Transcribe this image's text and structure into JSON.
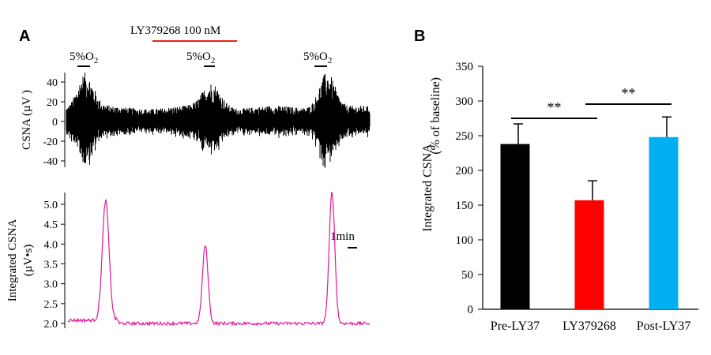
{
  "chart_data": [
    {
      "panel": "A",
      "type": "line",
      "description_top": {
        "ylabel": "CSNA (µV )",
        "yticks": [
          -40,
          -20,
          0,
          20,
          40
        ],
        "stimulus_label": "LY379268 100 nM",
        "stimulus_color": "#e8201f",
        "hypoxia_label": "5%O",
        "hypoxia_subscript": "2",
        "trace_color": "#000000"
      },
      "description_bottom": {
        "ylabel_line1": "Integrated CSNA",
        "ylabel_line2": "(µV•s)",
        "yticks": [
          2.0,
          2.5,
          3.0,
          3.5,
          4.0,
          4.5,
          5.0
        ],
        "scale_bar_label": "1min",
        "trace_color": "#e0199a",
        "baseline": 2.08,
        "peaks": [
          {
            "t": 0.125,
            "value": 5.1
          },
          {
            "t": 0.455,
            "value": 4.05
          },
          {
            "t": 0.875,
            "value": 5.4
          }
        ]
      }
    },
    {
      "panel": "B",
      "type": "bar",
      "categories": [
        "Pre-LY37",
        "LY379268",
        "Post-LY37"
      ],
      "values": [
        238,
        157,
        248
      ],
      "errors": [
        29,
        28,
        29
      ],
      "colors": [
        "#000000",
        "#ff0000",
        "#00b0f0"
      ],
      "ylabel_line1": "Integrated CSNA",
      "ylabel_line2": "(% of baseline)",
      "ylim": [
        0,
        350
      ],
      "yticks": [
        0,
        50,
        100,
        150,
        200,
        250,
        300,
        350
      ],
      "significance": [
        {
          "from": 0,
          "to": 1,
          "label": "**"
        },
        {
          "from": 1,
          "to": 2,
          "label": "**"
        }
      ]
    }
  ],
  "panel_labels": {
    "a": "A",
    "b": "B"
  }
}
